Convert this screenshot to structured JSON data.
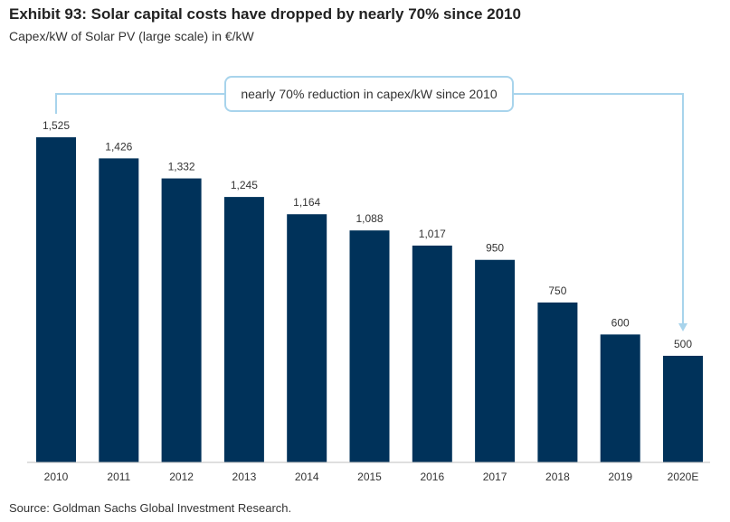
{
  "title": "Exhibit 93: Solar capital costs have dropped by nearly 70% since 2010",
  "subtitle": "Capex/kW of Solar PV (large scale) in €/kW",
  "source": "Source: Goldman Sachs Global Investment Research.",
  "annotation": "nearly 70% reduction in capex/kW since 2010",
  "colors": {
    "bar": "#00325a",
    "annotation_line": "#a8d4ec",
    "axis": "#bfbfbf"
  },
  "chart_data": {
    "type": "bar",
    "title": "Exhibit 93: Solar capital costs have dropped by nearly 70% since 2010",
    "subtitle": "Capex/kW of Solar PV (large scale) in €/kW",
    "categories": [
      "2010",
      "2011",
      "2012",
      "2013",
      "2014",
      "2015",
      "2016",
      "2017",
      "2018",
      "2019",
      "2020E"
    ],
    "values": [
      1525,
      1426,
      1332,
      1245,
      1164,
      1088,
      1017,
      950,
      750,
      600,
      500
    ],
    "value_labels": [
      "1,525",
      "1,426",
      "1,332",
      "1,245",
      "1,164",
      "1,088",
      "1,017",
      "950",
      "750",
      "600",
      "500"
    ],
    "ylim": [
      0,
      1525
    ],
    "grid": false,
    "legend": "none"
  }
}
